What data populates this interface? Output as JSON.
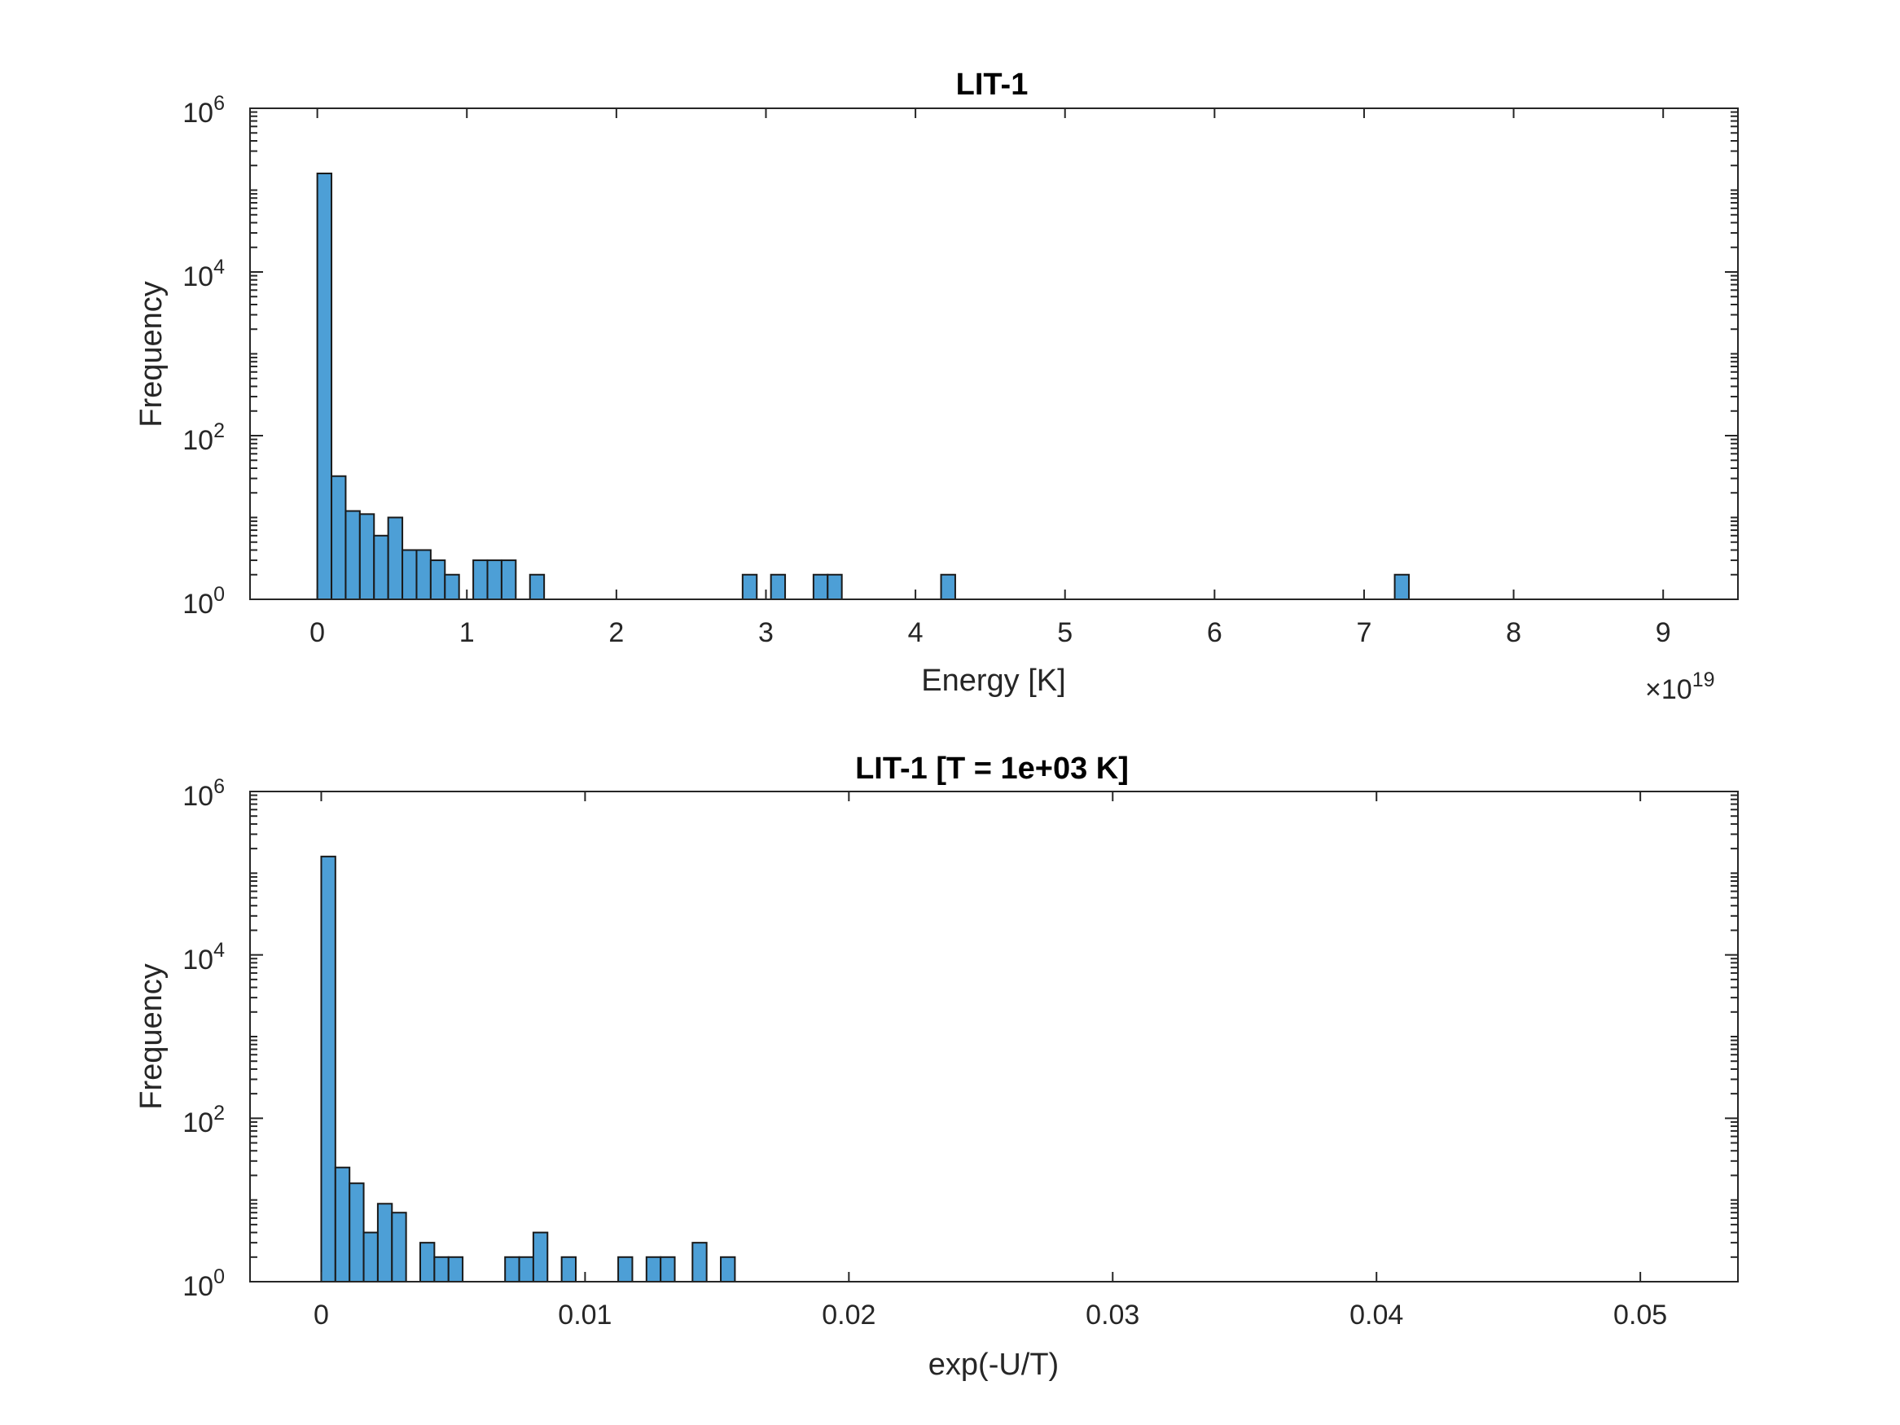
{
  "chart_data": [
    {
      "type": "bar",
      "title": "LIT-1",
      "xlabel": "Energy [K]",
      "ylabel": "Frequency",
      "x_exponent_label": {
        "base": "×10",
        "exponent": "19"
      },
      "yscale": "log",
      "xlim": [
        -0.45,
        9.5
      ],
      "ylim": [
        1,
        1000000
      ],
      "xticks": [
        0,
        1,
        2,
        3,
        4,
        5,
        6,
        7,
        8,
        9
      ],
      "xtick_labels": [
        "0",
        "1",
        "2",
        "3",
        "4",
        "5",
        "6",
        "7",
        "8",
        "9"
      ],
      "ytick_labels": [
        {
          "base": "10",
          "exponent": "0"
        },
        {
          "base": "10",
          "exponent": "2"
        },
        {
          "base": "10",
          "exponent": "4"
        },
        {
          "base": "10",
          "exponent": "6"
        }
      ],
      "bin_width": 0.0948,
      "bin_starts": [
        0.0,
        0.0948,
        0.1896,
        0.2844,
        0.3792,
        0.474,
        0.5688,
        0.6636,
        0.7584,
        0.8532,
        0.948,
        1.0428,
        1.1376,
        1.2324,
        1.422,
        2.844,
        3.0336,
        3.318,
        3.4128,
        4.1712,
        7.2048
      ],
      "values": [
        160000,
        32,
        12,
        11,
        6,
        10,
        4,
        4,
        3,
        2,
        1,
        3,
        3,
        3,
        2,
        2,
        2,
        2,
        2,
        2,
        2
      ],
      "color": "#4d9fd6"
    },
    {
      "type": "bar",
      "title": "LIT-1 [T = 1e+03 K]",
      "xlabel": "exp(-U/T)",
      "ylabel": "Frequency",
      "yscale": "log",
      "xlim": [
        -0.0027,
        0.0537
      ],
      "ylim": [
        1,
        1000000
      ],
      "xticks": [
        0,
        0.01,
        0.02,
        0.03,
        0.04,
        0.05
      ],
      "xtick_labels": [
        "0",
        "0.01",
        "0.02",
        "0.03",
        "0.04",
        "0.05"
      ],
      "ytick_labels": [
        {
          "base": "10",
          "exponent": "0"
        },
        {
          "base": "10",
          "exponent": "2"
        },
        {
          "base": "10",
          "exponent": "4"
        },
        {
          "base": "10",
          "exponent": "6"
        }
      ],
      "bin_width": 0.000536,
      "bin_starts": [
        0.0,
        0.000536,
        0.001072,
        0.001608,
        0.002144,
        0.00268,
        0.003752,
        0.004288,
        0.004824,
        0.006968,
        0.007504,
        0.00804,
        0.009112,
        0.011256,
        0.012328,
        0.012864,
        0.014072,
        0.015144
      ],
      "values": [
        160000,
        25,
        16,
        4,
        9,
        7,
        3,
        2,
        2,
        2,
        2,
        4,
        2,
        2,
        2,
        2,
        3,
        2
      ],
      "color": "#4d9fd6"
    }
  ]
}
